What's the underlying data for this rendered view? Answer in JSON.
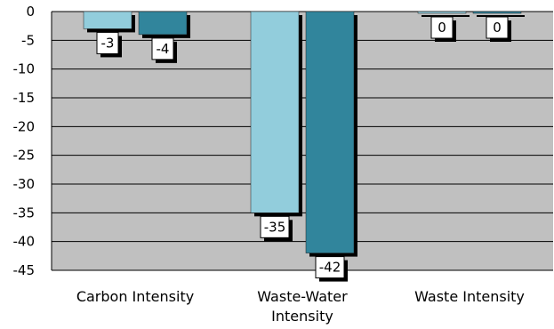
{
  "chart_data": {
    "type": "bar",
    "categories": [
      "Carbon Intensity",
      "Waste-Water Intensity",
      "Waste Intensity"
    ],
    "series": [
      {
        "values": [
          -3,
          -35,
          0
        ]
      },
      {
        "values": [
          -4,
          -42,
          0
        ]
      }
    ],
    "data_labels": [
      [
        "-3",
        "-35",
        "0"
      ],
      [
        "-4",
        "-42",
        "0"
      ]
    ],
    "y_ticks": [
      0,
      -5,
      -10,
      -15,
      -20,
      -25,
      -30,
      -35,
      -40,
      -45
    ],
    "ylim": [
      -45,
      0
    ],
    "grid": true,
    "legend": "none",
    "colors": {
      "series": [
        "#92CDDC",
        "#31859C"
      ],
      "plot_bg": "#C0C0C0",
      "gridline": "#000000",
      "shadow": "#000000"
    }
  }
}
